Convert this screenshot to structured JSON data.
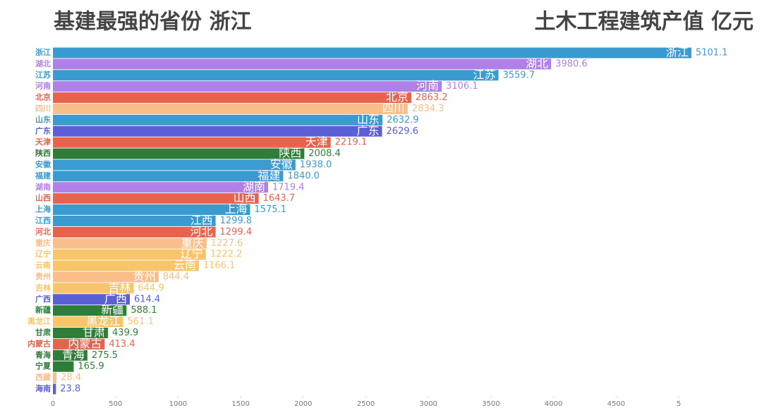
{
  "chart_data": {
    "type": "bar",
    "orientation": "horizontal",
    "title": "基建最强的省份  浙江",
    "subtitle": "土木工程建筑产值 亿元",
    "categories": [
      "浙江",
      "湖北",
      "江苏",
      "河南",
      "北京",
      "四川",
      "山东",
      "广东",
      "天津",
      "陕西",
      "安徽",
      "福建",
      "湖南",
      "山西",
      "上海",
      "江西",
      "河北",
      "重庆",
      "辽宁",
      "云南",
      "贵州",
      "吉林",
      "广西",
      "新疆",
      "黑龙江",
      "甘肃",
      "内蒙古",
      "青海",
      "宁夏",
      "西藏",
      "海南"
    ],
    "values": [
      5101.1,
      3980.6,
      3559.7,
      3106.1,
      2863.2,
      2834.3,
      2632.9,
      2629.6,
      2219.1,
      2008.4,
      1938.0,
      1840.0,
      1719.4,
      1643.7,
      1575.1,
      1299.8,
      1299.4,
      1227.6,
      1222.2,
      1166.1,
      844.4,
      644.9,
      614.4,
      588.1,
      561.1,
      439.9,
      413.4,
      275.5,
      165.9,
      28.4,
      23.8
    ],
    "value_labels": [
      "5101.1",
      "3980.6",
      "3559.7",
      "3106.1",
      "2863.2",
      "2834.3",
      "2632.9",
      "2629.6",
      "2219.1",
      "2008.4",
      "1938.0",
      "1840.0",
      "1719.4",
      "1643.7",
      "1575.1",
      "1299.8",
      "1299.4",
      "1227.6",
      "1222.2",
      "1166.1",
      "844.4",
      "644.9",
      "614.4",
      "588.1",
      "561.1",
      "439.9",
      "413.4",
      "275.5",
      "165.9",
      "28.4",
      "23.8"
    ],
    "colors": [
      "#3a9bd0",
      "#b07fe8",
      "#3a9bd0",
      "#b07fe8",
      "#e8634e",
      "#f9be8a",
      "#3a9bd0",
      "#5a5fd6",
      "#e8634e",
      "#2e7d3a",
      "#3a9bd0",
      "#3a9bd0",
      "#b07fe8",
      "#e8634e",
      "#3a9bd0",
      "#3a9bd0",
      "#e8634e",
      "#f9be8a",
      "#f9c56a",
      "#f9c56a",
      "#f9be8a",
      "#f9c56a",
      "#5a5fd6",
      "#2e7d3a",
      "#f9c56a",
      "#2e7d3a",
      "#e8634e",
      "#2e7d3a",
      "#2e7d3a",
      "#f9be8a",
      "#5a5fd6"
    ],
    "xlim": [
      0,
      5000
    ],
    "xticks": [
      0,
      500,
      1000,
      1500,
      2000,
      2500,
      3000,
      3500,
      4000,
      4500,
      {
        "value": 5000,
        "label": "5"
      }
    ]
  }
}
